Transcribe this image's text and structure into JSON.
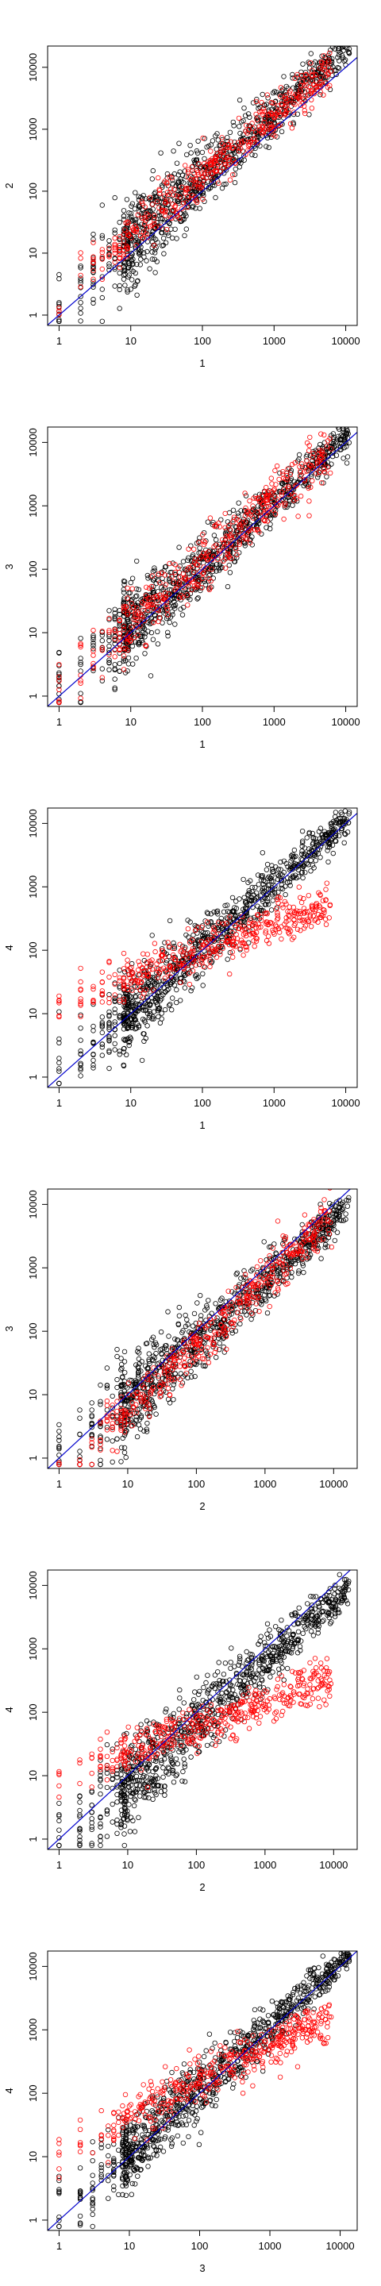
{
  "chart_data": [
    {
      "type": "scatter",
      "xlabel": "1",
      "ylabel": "2",
      "x_ticks": [
        "1",
        "10",
        "100",
        "1000",
        "10000"
      ],
      "y_ticks": [
        "1",
        "10",
        "100",
        "1000",
        "10000"
      ],
      "xlim": [
        1,
        10000
      ],
      "ylim": [
        1,
        15000
      ],
      "log_axes": true,
      "reference_line": "y = x",
      "colors": {
        "black_points": "#000000",
        "red_points": "#ff0000",
        "line": "#0000cc"
      },
      "cloud": {
        "slope": 1.05,
        "offset": 1.45,
        "spread": 0.35
      },
      "red_trend": {
        "slope": 0.95,
        "offset": 2.3,
        "spread": 0.18
      }
    },
    {
      "type": "scatter",
      "xlabel": "1",
      "ylabel": "3",
      "x_ticks": [
        "1",
        "10",
        "100",
        "1000",
        "10000"
      ],
      "y_ticks": [
        "1",
        "10",
        "100",
        "1000",
        "10000"
      ],
      "xlim": [
        1,
        10000
      ],
      "ylim": [
        1,
        12000
      ],
      "log_axes": true,
      "reference_line": "y = x",
      "colors": {
        "black_points": "#000000",
        "red_points": "#ff0000",
        "line": "#0000cc"
      },
      "cloud": {
        "slope": 1.0,
        "offset": 1.2,
        "spread": 0.3
      },
      "red_trend": {
        "slope": 1.0,
        "offset": 1.25,
        "spread": 0.25
      }
    },
    {
      "type": "scatter",
      "xlabel": "1",
      "ylabel": "4",
      "x_ticks": [
        "1",
        "10",
        "100",
        "1000",
        "10000"
      ],
      "y_ticks": [
        "1",
        "10",
        "100",
        "1000",
        "10000"
      ],
      "xlim": [
        1,
        10000
      ],
      "ylim": [
        1,
        12000
      ],
      "log_axes": true,
      "reference_line": "y = x",
      "colors": {
        "black_points": "#000000",
        "red_points": "#ff0000",
        "line": "#0000cc"
      },
      "cloud": {
        "slope": 1.0,
        "offset": 1.1,
        "spread": 0.3
      },
      "red_trend": {
        "slope": 0.42,
        "offset": 14.0,
        "spread": 0.18
      }
    },
    {
      "type": "scatter",
      "xlabel": "2",
      "ylabel": "3",
      "x_ticks": [
        "1",
        "10",
        "100",
        "1000",
        "10000"
      ],
      "y_ticks": [
        "1",
        "10",
        "100",
        "1000",
        "10000"
      ],
      "xlim": [
        1,
        15000
      ],
      "ylim": [
        1,
        12000
      ],
      "log_axes": true,
      "reference_line": "y = x",
      "colors": {
        "black_points": "#000000",
        "red_points": "#ff0000",
        "line": "#0000cc"
      },
      "cloud": {
        "slope": 0.95,
        "offset": 0.8,
        "spread": 0.35
      },
      "red_trend": {
        "slope": 1.05,
        "offset": 0.45,
        "spread": 0.2
      }
    },
    {
      "type": "scatter",
      "xlabel": "2",
      "ylabel": "4",
      "x_ticks": [
        "1",
        "10",
        "100",
        "1000",
        "10000"
      ],
      "y_ticks": [
        "1",
        "10",
        "100",
        "1000",
        "10000"
      ],
      "xlim": [
        1,
        15000
      ],
      "ylim": [
        1,
        12000
      ],
      "log_axes": true,
      "reference_line": "y = x",
      "colors": {
        "black_points": "#000000",
        "red_points": "#ff0000",
        "line": "#0000cc"
      },
      "cloud": {
        "slope": 0.95,
        "offset": 0.8,
        "spread": 0.35
      },
      "red_trend": {
        "slope": 0.4,
        "offset": 9.0,
        "spread": 0.18
      }
    },
    {
      "type": "scatter",
      "xlabel": "3",
      "ylabel": "4",
      "x_ticks": [
        "1",
        "10",
        "100",
        "1000",
        "10000"
      ],
      "y_ticks": [
        "1",
        "10",
        "100",
        "1000",
        "10000"
      ],
      "xlim": [
        1,
        12000
      ],
      "ylim": [
        1,
        12000
      ],
      "log_axes": true,
      "reference_line": "y = x",
      "colors": {
        "black_points": "#000000",
        "red_points": "#ff0000",
        "line": "#0000cc"
      },
      "cloud": {
        "slope": 1.0,
        "offset": 1.15,
        "spread": 0.3
      },
      "red_trend": {
        "slope": 0.55,
        "offset": 12.0,
        "spread": 0.18
      }
    }
  ]
}
